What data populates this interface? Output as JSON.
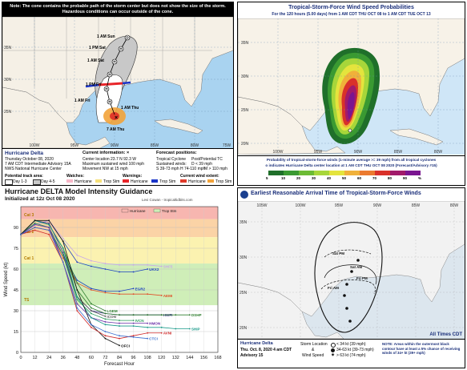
{
  "cone": {
    "note": "Note: The cone contains the probable path of the storm center but does not show the size of the storm. Hazardous conditions can occur outside of the cone.",
    "lat_labels": [
      "35N",
      "30N",
      "25N"
    ],
    "lon_labels": [
      "100W",
      "95W",
      "90W",
      "85W",
      "80W",
      "75W"
    ],
    "track_labels": [
      "1 AM Sun",
      "1 PM Sat",
      "1 AM Sat",
      "1 PM Fri",
      "1 AM Fri",
      "1 AM Thu",
      "7 AM Thu"
    ],
    "track_markers": [
      "D",
      "H",
      "H",
      "H",
      "H",
      "H"
    ],
    "storm_name": "Hurricane Delta",
    "issued": "Thursday October 08, 2020",
    "advisory": "7 AM CDT Intermediate Advisory 15A",
    "center": "NWS National Hurricane Center",
    "current_info_title": "Current information: ×",
    "current_info": [
      "Center location 23.7 N 92.3 W",
      "Maximum sustained wind 100 mph",
      "Movement NW at 15 mph"
    ],
    "forecast_title": "Forecast positions:",
    "forecast_lines": [
      "Tropical Cyclone",
      "Post/Potential TC",
      "Sustained winds:",
      "D < 39 mph",
      "S 39-73 mph",
      "H 74-110 mph",
      "M > 110 mph"
    ],
    "potential_track_label": "Potential track area:",
    "day_labels": [
      "Day 1-3",
      "Day 4-5"
    ],
    "watches_label": "Watches:",
    "watch_items": [
      "Hurricane",
      "Trop Stm"
    ],
    "warnings_label": "Warnings:",
    "warning_items": [
      "Hurricane",
      "Trop Stm"
    ],
    "wind_extent_label": "Current wind extent:",
    "wind_extent_items": [
      "Hurricane",
      "Trop Stm"
    ],
    "colors": {
      "cone_day13": "#ffffff",
      "cone_day45": "#c8c8c8",
      "hurricane_warning": "#e8252a",
      "ts_warning": "#1a35c9",
      "hurricane_wind": "#e03a2a",
      "ts_wind": "#f2a33a"
    }
  },
  "prob": {
    "title": "Tropical-Storm-Force Wind Speed Probabilities",
    "subtitle": "For the 120 hours (5.00 days) from 1 AM CDT THU OCT 08 to 1 AM CDT TUE OCT 13",
    "lat_labels": [
      "35N",
      "30N",
      "25N",
      "20N"
    ],
    "lon_labels": [
      "100W",
      "95W",
      "90W",
      "85W",
      "80W"
    ],
    "footer": [
      "Probability of tropical-storm-force winds (1-minute average >= 39 mph) from all tropical cyclones",
      "o  indicates Hurricane Delta center location at 1 AM CDT THU OCT 08 2020 (Forecast/Advisory #15)"
    ],
    "scale_labels": [
      "5",
      "10",
      "20",
      "30",
      "40",
      "50",
      "60",
      "70",
      "80",
      "90",
      "%"
    ],
    "scale_colors": [
      "#1f6f2a",
      "#3a9a32",
      "#6cbb35",
      "#a7d63a",
      "#e4e43d",
      "#f0b13a",
      "#eb7a2f",
      "#d9312a",
      "#a11a6a",
      "#7a1590"
    ]
  },
  "model": {
    "title": "Hurricane DELTA Model Intensity Guidance",
    "subtitle": "Initialized at 12z Oct 08 2020",
    "credit": "Levi Cowan - tropicaltidbits.com",
    "ylabel": "Wind Speed (kt)",
    "xlabel": "Forecast Hour",
    "band_labels": [
      "Cat 3",
      "Cat 2",
      "Cat 1",
      "TS"
    ],
    "model_labels": [
      "UKX2",
      "SHF5",
      "EGR2",
      "AEMI",
      "LGEM",
      "HWFI",
      "DSHP",
      "ICON",
      "IVCN",
      "HMON",
      "SHIP",
      "OFCI",
      "AVNI",
      "CTCI"
    ],
    "legend": [
      "Hurricane",
      "Trop Stm"
    ],
    "chart_data": {
      "type": "line",
      "x": [
        0,
        12,
        24,
        36,
        48,
        60,
        72,
        84,
        96,
        108,
        120,
        132,
        144,
        156,
        168
      ],
      "xlabel": "Forecast Hour",
      "ylabel": "Wind Speed (kt)",
      "xlim": [
        0,
        168
      ],
      "ylim": [
        0,
        105
      ],
      "x_ticks": [
        0,
        12,
        24,
        36,
        48,
        60,
        72,
        84,
        96,
        108,
        120,
        132,
        144,
        156,
        168
      ],
      "y_ticks": [
        0,
        15,
        30,
        45,
        60,
        75,
        90
      ],
      "bands": [
        {
          "name": "Cat 3",
          "from": 96,
          "to": 105,
          "color": "#f7b6b0"
        },
        {
          "name": "Cat 2",
          "from": 83,
          "to": 96,
          "color": "#fbd3a6"
        },
        {
          "name": "Cat 1",
          "from": 64,
          "to": 83,
          "color": "#fbf2b0"
        },
        {
          "name": "TS",
          "from": 34,
          "to": 64,
          "color": "#cfeeb8"
        }
      ],
      "series": [
        {
          "name": "UKX2",
          "color": "#1a3fbf",
          "x": [
            0,
            12,
            24,
            36,
            48,
            60,
            72,
            84,
            96,
            108
          ],
          "values": [
            85,
            92,
            95,
            80,
            65,
            62,
            60,
            58,
            58,
            60
          ]
        },
        {
          "name": "SHF5",
          "color": "#c9a8e8",
          "x": [
            0,
            12,
            24,
            36,
            48,
            60,
            72,
            84,
            96,
            108,
            120
          ],
          "values": [
            85,
            92,
            95,
            82,
            70,
            66,
            64,
            63,
            63,
            63,
            62
          ]
        },
        {
          "name": "EGR2",
          "color": "#1a3fbf",
          "x": [
            0,
            12,
            24,
            36,
            48,
            60,
            72,
            84,
            96
          ],
          "values": [
            85,
            90,
            88,
            70,
            52,
            46,
            44,
            44,
            46
          ]
        },
        {
          "name": "AEMI",
          "color": "#e0502a",
          "x": [
            0,
            12,
            24,
            36,
            48,
            60,
            72,
            84,
            96,
            108,
            120
          ],
          "values": [
            85,
            90,
            88,
            68,
            50,
            45,
            43,
            42,
            42,
            42,
            41
          ]
        },
        {
          "name": "LGEM",
          "color": "#2e7d2e",
          "x": [
            0,
            12,
            24,
            36,
            48,
            60,
            72
          ],
          "values": [
            85,
            95,
            92,
            75,
            50,
            35,
            30
          ]
        },
        {
          "name": "HWFI",
          "color": "#3a2f8f",
          "x": [
            0,
            12,
            24,
            36,
            48,
            60,
            72,
            84,
            96,
            108,
            120
          ],
          "values": [
            85,
            95,
            93,
            72,
            40,
            30,
            28,
            27,
            27,
            27,
            27
          ]
        },
        {
          "name": "DSHP",
          "color": "#2e7d2e",
          "x": [
            0,
            12,
            24,
            36,
            48,
            60,
            72,
            84,
            96,
            108,
            120,
            132,
            144
          ],
          "values": [
            85,
            95,
            92,
            75,
            45,
            32,
            28,
            27,
            27,
            27,
            27,
            27,
            27
          ]
        },
        {
          "name": "ICON",
          "color": "#555555",
          "x": [
            0,
            12,
            24,
            36,
            48,
            60,
            72
          ],
          "values": [
            85,
            93,
            90,
            70,
            40,
            30,
            26
          ]
        },
        {
          "name": "IVCN",
          "color": "#2a9a5a",
          "x": [
            0,
            12,
            24,
            36,
            48,
            60,
            72,
            84,
            96
          ],
          "values": [
            85,
            93,
            90,
            70,
            38,
            28,
            24,
            23,
            23
          ]
        },
        {
          "name": "HMON",
          "color": "#6a2fa8",
          "x": [
            0,
            12,
            24,
            36,
            48,
            60,
            72,
            84,
            96,
            108
          ],
          "values": [
            85,
            92,
            90,
            65,
            35,
            25,
            22,
            21,
            21,
            21
          ]
        },
        {
          "name": "SHIP",
          "color": "#1a9a8a",
          "x": [
            0,
            12,
            24,
            36,
            48,
            60,
            72,
            84,
            96,
            108,
            120,
            132,
            144
          ],
          "values": [
            85,
            95,
            92,
            75,
            40,
            25,
            20,
            19,
            19,
            18,
            18,
            17,
            17
          ]
        },
        {
          "name": "OFCI",
          "color": "#111111",
          "x": [
            0,
            12,
            24,
            36,
            48,
            60,
            72,
            84
          ],
          "values": [
            85,
            95,
            95,
            80,
            45,
            20,
            10,
            5
          ]
        },
        {
          "name": "AVNI",
          "color": "#d02a2a",
          "x": [
            0,
            12,
            24,
            36,
            48,
            60,
            72,
            84,
            96,
            108,
            120
          ],
          "values": [
            85,
            88,
            85,
            65,
            30,
            18,
            12,
            10,
            12,
            14,
            14
          ]
        },
        {
          "name": "CTCI",
          "color": "#3a6fd0",
          "x": [
            0,
            12,
            24,
            36,
            48,
            60,
            72,
            84,
            96,
            108
          ],
          "values": [
            85,
            90,
            88,
            65,
            32,
            20,
            15,
            12,
            11,
            10
          ]
        }
      ]
    }
  },
  "arrival": {
    "title": "Earliest Reasonable Arrival Time of Tropical-Storm-Force Winds",
    "lat_labels": [
      "35N",
      "30N",
      "25N",
      "20N"
    ],
    "lon_labels": [
      "105W",
      "100W",
      "95W",
      "90W",
      "85W",
      "80W"
    ],
    "time_labels": [
      "Sat PM",
      "Sat AM",
      "Fri PM",
      "Fri AM"
    ],
    "all_times": "All Times CDT",
    "storm_name": "Hurricane Delta",
    "issued": "Thu. Oct. 8, 2020   4 am CDT",
    "advisory": "Advisory 15",
    "legend_left": [
      "Storm Location",
      "&",
      "Wind Speed"
    ],
    "legend_items": [
      "< 34 kt (39 mph)",
      "34-63 kt (39-73 mph)",
      "> 63 kt (74 mph)"
    ],
    "note": "NOTE: Areas within the outermost black contour have at least a 5% chance of receiving winds of 34+ kt (39+ mph)"
  }
}
